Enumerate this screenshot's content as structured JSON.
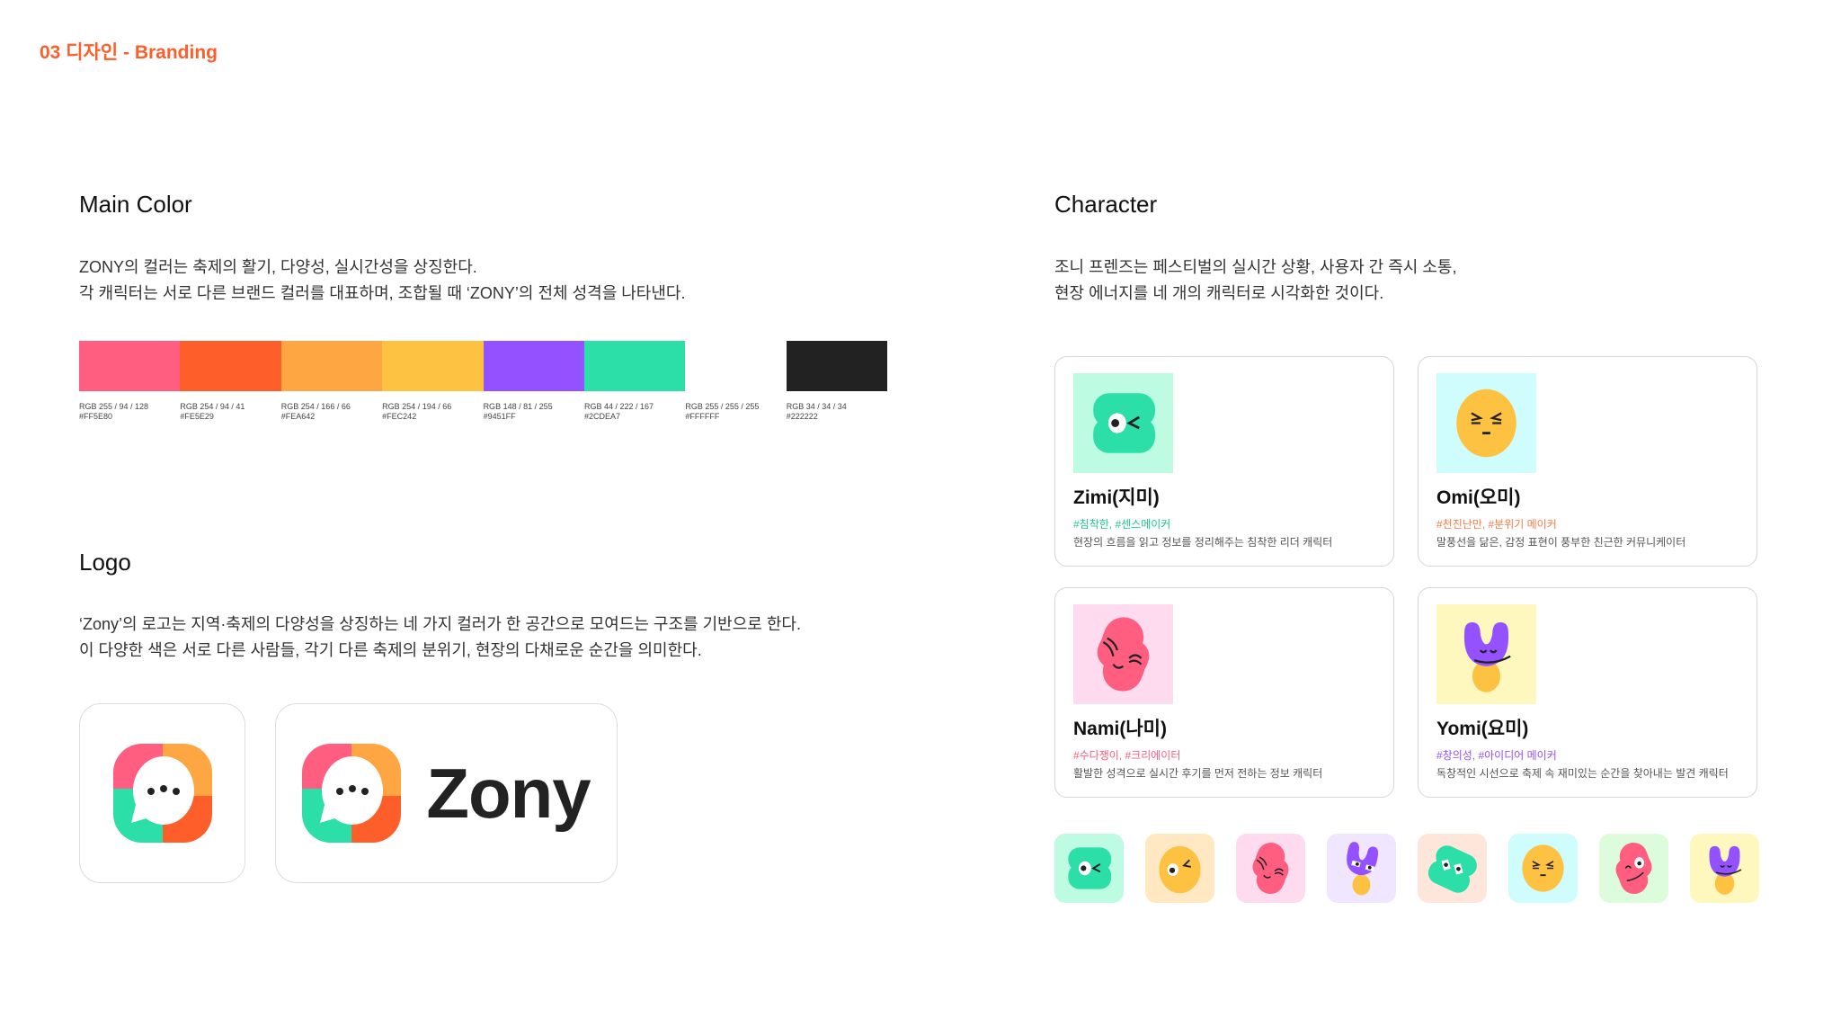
{
  "header": {
    "title": "03 디자인 - Branding",
    "accent": "#FE5E29"
  },
  "main_color": {
    "title": "Main Color",
    "lines": [
      "ZONY의 컬러는 축제의 활기, 다양성, 실시간성을 상징한다.",
      "각 캐릭터는 서로 다른 브랜드 컬러를 대표하며, 조합될 때 ‘ZONY’의 전체 성격을 나타낸다."
    ],
    "swatches": [
      {
        "rgb": "RGB 255 / 94 / 128",
        "hex": "#FF5E80"
      },
      {
        "rgb": "RGB 254 / 94 / 41",
        "hex": "#FE5E29"
      },
      {
        "rgb": "RGB 254 / 166 / 66",
        "hex": "#FEA642"
      },
      {
        "rgb": "RGB 254 / 194 / 66",
        "hex": "#FEC242"
      },
      {
        "rgb": "RGB 148 / 81 / 255",
        "hex": "#9451FF"
      },
      {
        "rgb": "RGB 44 / 222 / 167",
        "hex": "#2CDEA7"
      },
      {
        "rgb": "RGB 255 / 255 / 255",
        "hex": "#FFFFFF"
      },
      {
        "rgb": "RGB 34 / 34 / 34",
        "hex": "#222222"
      }
    ]
  },
  "logo": {
    "title": "Logo",
    "lines": [
      "‘Zony’의 로고는 지역·축제의 다양성을 상징하는 네 가지 컬러가 한 공간으로 모여드는 구조를 기반으로 한다.",
      "이 다양한 색은 서로 다른 사람들, 각기 다른 축제의 분위기, 현장의 다채로운 순간을 의미한다."
    ],
    "wordmark": "Zony"
  },
  "character": {
    "title": "Character",
    "lines": [
      "조니 프렌즈는 페스티벌의 실시간 상황, 사용자 간 즉시 소통,",
      "현장 에너지를 네 개의 캐릭터로 시각화한 것이다."
    ],
    "cards": [
      {
        "name": "Zimi(지미)",
        "tags": "#침착한, #센스메이커",
        "desc": "현장의 흐름을 읽고 정보를 정리해주는 침착한 리더 캐릭터",
        "tag_color": "#1FC792",
        "bg": "#BDFCE3",
        "icon": "zimi-character-icon"
      },
      {
        "name": "Omi(오미)",
        "tags": "#천진난만, #분위기 메이커",
        "desc": "말풍선을 닮은, 감정 표현이 풍부한 친근한 커뮤니케이터",
        "tag_color": "#FE7A45",
        "bg": "#CFFCFC",
        "icon": "omi-character-icon"
      },
      {
        "name": "Nami(나미)",
        "tags": "#수다쟁이, #크리에이터",
        "desc": "활발한 성격으로 실시간 후기를 먼저 전하는 정보 캐릭터",
        "tag_color": "#FF5E80",
        "bg": "#FFDBF0",
        "icon": "nami-character-icon"
      },
      {
        "name": "Yomi(요미)",
        "tags": "#창의성, #아이디어 메이커",
        "desc": "독창적인 시선으로 축제 속 재미있는 순간을 찾아내는 발견 캐릭터",
        "tag_color": "#9451FF",
        "bg": "#FFF8BE",
        "icon": "yomi-character-icon"
      }
    ],
    "tiles": [
      {
        "icon": "zimi",
        "bg": "#BDFCE3"
      },
      {
        "icon": "omi-wink",
        "bg": "#FFE8C2"
      },
      {
        "icon": "nami",
        "bg": "#FFDBF0"
      },
      {
        "icon": "yomi-eyes",
        "bg": "#F0E6FF"
      },
      {
        "icon": "zimi-eyes",
        "bg": "#FFE6DA"
      },
      {
        "icon": "omi",
        "bg": "#CFFCFC"
      },
      {
        "icon": "nami-eye",
        "bg": "#DCFCDB"
      },
      {
        "icon": "yomi",
        "bg": "#FFF8BE"
      }
    ]
  }
}
